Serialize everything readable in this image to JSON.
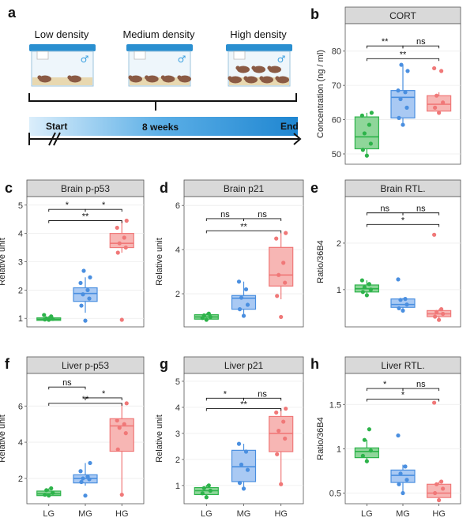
{
  "colors": {
    "LG": "#2db34a",
    "MG": "#4a8fe0",
    "HG": "#f07878",
    "LG_fill": "#8fd69a",
    "MG_fill": "#a9c9f3",
    "HG_fill": "#f7b6b4",
    "strip": "#d9d9d9"
  },
  "panel_a": {
    "letter": "a",
    "cages": [
      {
        "label": "Low density",
        "mice": 2
      },
      {
        "label": "Medium density",
        "mice": 4
      },
      {
        "label": "High density",
        "mice": 7
      }
    ],
    "icon": "male-symbol-icon",
    "timeline": {
      "start": "Start",
      "duration": "8 weeks",
      "end": "End"
    }
  },
  "chart_data": [
    {
      "id": "b",
      "letter": "b",
      "type": "box",
      "title": "CORT",
      "ylabel": "Concentration (ng / ml)",
      "categories": [
        "LG",
        "MG",
        "HG"
      ],
      "yticks": [
        50,
        60,
        70,
        80
      ],
      "ylim": [
        47,
        88
      ],
      "boxes": [
        {
          "min": 49.5,
          "q1": 51.5,
          "median": 55,
          "q3": 60.8,
          "max": 62
        },
        {
          "min": 58.5,
          "q1": 60.5,
          "median": 66.5,
          "q3": 68.5,
          "max": 76
        },
        {
          "min": 62,
          "q1": 62.5,
          "median": 64.5,
          "q3": 67,
          "max": 68
        }
      ],
      "points": [
        [
          49.5,
          51.2,
          53,
          56,
          58.5,
          61.2,
          62
        ],
        [
          58.5,
          60.5,
          63.5,
          66,
          68,
          68.5,
          74.2,
          76
        ],
        [
          62,
          63.5,
          65,
          67,
          74.2,
          75
        ]
      ],
      "sig": [
        {
          "from": "LG",
          "to": "MG",
          "label": "**",
          "y": 81.5
        },
        {
          "from": "MG",
          "to": "HG",
          "label": "ns",
          "y": 81.5
        },
        {
          "from": "LG",
          "to": "HG",
          "label": "**",
          "y": 77.8
        }
      ],
      "show_x": false
    },
    {
      "id": "c",
      "letter": "c",
      "type": "box",
      "title": "Brain p-p53",
      "ylabel": "Relative unit",
      "categories": [
        "LG",
        "MG",
        "HG"
      ],
      "yticks": [
        1,
        2,
        3,
        4,
        5
      ],
      "ylim": [
        0.7,
        5.3
      ],
      "boxes": [
        {
          "min": 0.92,
          "q1": 0.93,
          "median": 0.97,
          "q3": 1.02,
          "max": 1.08
        },
        {
          "min": 1.2,
          "q1": 1.6,
          "median": 1.88,
          "q3": 2.08,
          "max": 2.45
        },
        {
          "min": 3.32,
          "q1": 3.5,
          "median": 3.65,
          "q3": 4.0,
          "max": 4.45
        }
      ],
      "points": [
        [
          0.95,
          0.96,
          0.98,
          1.0,
          1.07,
          1.12
        ],
        [
          0.92,
          1.45,
          1.7,
          1.85,
          2.0,
          2.25,
          2.45,
          2.68
        ],
        [
          0.95,
          3.32,
          3.5,
          3.65,
          3.85,
          4.2,
          4.45
        ]
      ],
      "sig": [
        {
          "from": "LG",
          "to": "MG",
          "label": "*",
          "y": 4.85
        },
        {
          "from": "MG",
          "to": "HG",
          "label": "*",
          "y": 4.85
        },
        {
          "from": "LG",
          "to": "HG",
          "label": "**",
          "y": 4.45
        }
      ],
      "show_x": false
    },
    {
      "id": "d",
      "letter": "d",
      "type": "box",
      "title": "Brain p21",
      "ylabel": "Relative unit",
      "categories": [
        "LG",
        "MG",
        "HG"
      ],
      "yticks": [
        2,
        4,
        6
      ],
      "ylim": [
        0.5,
        6.4
      ],
      "boxes": [
        {
          "min": 0.82,
          "q1": 0.85,
          "median": 0.95,
          "q3": 1.05,
          "max": 1.12
        },
        {
          "min": 1.0,
          "q1": 1.3,
          "median": 1.8,
          "q3": 1.92,
          "max": 2.55
        },
        {
          "min": 1.75,
          "q1": 2.35,
          "median": 2.85,
          "q3": 4.1,
          "max": 4.75
        }
      ],
      "points": [
        [
          0.82,
          0.9,
          0.95,
          1.02,
          1.1
        ],
        [
          1.0,
          1.3,
          1.5,
          1.82,
          2.2,
          2.55
        ],
        [
          0.95,
          1.9,
          2.5,
          2.85,
          3.4,
          4.5,
          4.75
        ]
      ],
      "sig": [
        {
          "from": "LG",
          "to": "MG",
          "label": "ns",
          "y": 5.4
        },
        {
          "from": "MG",
          "to": "HG",
          "label": "ns",
          "y": 5.4
        },
        {
          "from": "LG",
          "to": "HG",
          "label": "**",
          "y": 4.85
        }
      ],
      "show_x": false
    },
    {
      "id": "e",
      "letter": "e",
      "type": "box",
      "title": "Brain RTL.",
      "ylabel": "Ratio/36B4",
      "categories": [
        "LG",
        "MG",
        "HG"
      ],
      "yticks": [
        1,
        2
      ],
      "ylim": [
        0.2,
        3.0
      ],
      "boxes": [
        {
          "min": 0.88,
          "q1": 0.95,
          "median": 1.02,
          "q3": 1.1,
          "max": 1.2
        },
        {
          "min": 0.55,
          "q1": 0.62,
          "median": 0.68,
          "q3": 0.8,
          "max": 0.82
        },
        {
          "min": 0.35,
          "q1": 0.42,
          "median": 0.48,
          "q3": 0.55,
          "max": 0.58
        }
      ],
      "points": [
        [
          0.88,
          0.95,
          1.0,
          1.05,
          1.12,
          1.2
        ],
        [
          0.55,
          0.6,
          0.68,
          0.78,
          0.8,
          1.22
        ],
        [
          0.35,
          0.42,
          0.48,
          0.52,
          0.58,
          2.18
        ]
      ],
      "sig": [
        {
          "from": "LG",
          "to": "MG",
          "label": "ns",
          "y": 2.65
        },
        {
          "from": "MG",
          "to": "HG",
          "label": "ns",
          "y": 2.65
        },
        {
          "from": "LG",
          "to": "HG",
          "label": "*",
          "y": 2.4
        }
      ],
      "show_x": false
    },
    {
      "id": "f",
      "letter": "f",
      "type": "box",
      "title": "Liver p-p53",
      "ylabel": "Relative unit",
      "categories": [
        "LG",
        "MG",
        "HG"
      ],
      "yticks": [
        2,
        4,
        6
      ],
      "ylim": [
        0.6,
        7.8
      ],
      "boxes": [
        {
          "min": 1.05,
          "q1": 1.05,
          "median": 1.15,
          "q3": 1.3,
          "max": 1.45
        },
        {
          "min": 1.6,
          "q1": 1.75,
          "median": 2.0,
          "q3": 2.2,
          "max": 2.85
        },
        {
          "min": 1.1,
          "q1": 3.5,
          "median": 4.9,
          "q3": 5.3,
          "max": 6.15
        }
      ],
      "points": [
        [
          1.05,
          1.1,
          1.2,
          1.35,
          1.45
        ],
        [
          1.05,
          1.8,
          1.95,
          2.0,
          2.1,
          2.4,
          2.85
        ],
        [
          1.1,
          3.6,
          4.5,
          4.8,
          5.0,
          5.2,
          6.15
        ]
      ],
      "sig": [
        {
          "from": "LG",
          "to": "MG",
          "label": "ns",
          "y": 7.05
        },
        {
          "from": "MG",
          "to": "HG",
          "label": "*",
          "y": 6.45
        },
        {
          "from": "LG",
          "to": "HG",
          "label": "**",
          "y": 6.15
        }
      ],
      "show_x": true
    },
    {
      "id": "g",
      "letter": "g",
      "type": "box",
      "title": "Liver p21",
      "ylabel": "Relative unit",
      "categories": [
        "LG",
        "MG",
        "HG"
      ],
      "yticks": [
        1,
        2,
        3,
        4,
        5
      ],
      "ylim": [
        0.3,
        5.3
      ],
      "boxes": [
        {
          "min": 0.5,
          "q1": 0.65,
          "median": 0.8,
          "q3": 0.92,
          "max": 1.02
        },
        {
          "min": 0.88,
          "q1": 1.15,
          "median": 1.72,
          "q3": 2.35,
          "max": 2.6
        },
        {
          "min": 1.05,
          "q1": 2.3,
          "median": 3.0,
          "q3": 3.65,
          "max": 3.95
        }
      ],
      "points": [
        [
          0.55,
          0.7,
          0.8,
          0.9,
          1.0
        ],
        [
          0.88,
          1.1,
          1.6,
          1.8,
          2.3,
          2.6
        ],
        [
          1.05,
          2.2,
          2.8,
          3.1,
          3.45,
          3.8,
          3.95
        ]
      ],
      "sig": [
        {
          "from": "LG",
          "to": "MG",
          "label": "*",
          "y": 4.35
        },
        {
          "from": "MG",
          "to": "HG",
          "label": "ns",
          "y": 4.35
        },
        {
          "from": "LG",
          "to": "HG",
          "label": "**",
          "y": 3.95
        }
      ],
      "show_x": true
    },
    {
      "id": "h",
      "letter": "h",
      "type": "box",
      "title": "Liver RTL.",
      "ylabel": "Ratio/36B4",
      "categories": [
        "LG",
        "MG",
        "HG"
      ],
      "yticks": [
        0.5,
        1.0,
        1.5
      ],
      "ylim": [
        0.38,
        1.85
      ],
      "boxes": [
        {
          "min": 0.86,
          "q1": 0.9,
          "median": 0.97,
          "q3": 1.01,
          "max": 1.1
        },
        {
          "min": 0.5,
          "q1": 0.62,
          "median": 0.7,
          "q3": 0.76,
          "max": 0.82
        },
        {
          "min": 0.42,
          "q1": 0.45,
          "median": 0.5,
          "q3": 0.6,
          "max": 0.63
        }
      ],
      "points": [
        [
          0.86,
          0.92,
          0.98,
          1.1,
          1.22
        ],
        [
          0.5,
          0.6,
          0.65,
          0.72,
          0.8,
          1.15
        ],
        [
          0.42,
          0.5,
          0.55,
          0.6,
          0.63,
          1.52
        ]
      ],
      "sig": [
        {
          "from": "LG",
          "to": "MG",
          "label": "*",
          "y": 1.68
        },
        {
          "from": "MG",
          "to": "HG",
          "label": "ns",
          "y": 1.68
        },
        {
          "from": "LG",
          "to": "HG",
          "label": "*",
          "y": 1.56
        }
      ],
      "show_x": true
    }
  ]
}
